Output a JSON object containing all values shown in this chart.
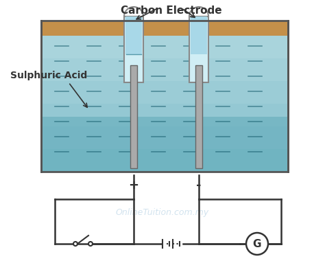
{
  "title": "Carbon Electrode",
  "label_acid": "Sulphuric Acid",
  "label_plus": "+",
  "label_minus": "-",
  "label_G": "G",
  "watermark": "OnlineTuition.com.my",
  "bg_color": "#ffffff",
  "tank_color": "#b0d8e0",
  "tank_dark_color": "#5ba8b8",
  "tank_border": "#555555",
  "sand_color": "#c4904a",
  "electrode_color": "#aaaaaa",
  "tube_color": "#d0eef5",
  "tube_border": "#888888",
  "line_color": "#333333",
  "watermark_color": "#c0d8e8"
}
